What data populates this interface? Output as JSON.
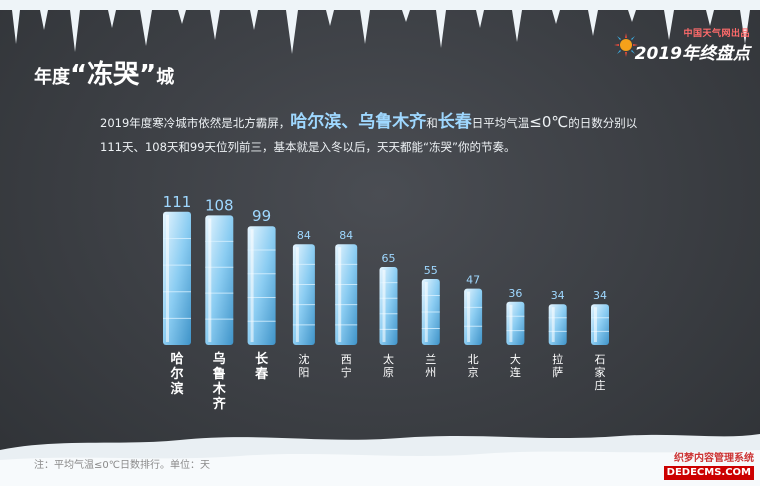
{
  "header": {
    "brand_small": "中国天气网出品",
    "brand_title": "2019年终盘点",
    "title_pre": "年度",
    "title_em": "“冻哭”",
    "title_post": "城"
  },
  "intro": {
    "t1": "2019年度寒冷城市依然是北方霸屏，",
    "c1": "哈尔滨",
    "s1": "、",
    "c2": "乌鲁木齐",
    "t2": "和",
    "c3": "长春",
    "t3": "日平均气温",
    "sym": "≤0℃",
    "t4": "的日数分别以",
    "line2": "111天、108天和99天位列前三，基本就是入冬以后，天天都能“冻哭”你的节奏。"
  },
  "chart_data": {
    "type": "bar",
    "categories": [
      "哈尔滨",
      "乌鲁木齐",
      "长春",
      "沈阳",
      "西宁",
      "太原",
      "兰州",
      "北京",
      "大连",
      "拉萨",
      "石家庄"
    ],
    "values": [
      111,
      108,
      99,
      84,
      84,
      65,
      55,
      47,
      36,
      34,
      34
    ],
    "unit": "天"
  },
  "footer": {
    "note": "注：平均气温≤0℃日数排行。单位：天",
    "watermark_1": "织梦内容管理系统",
    "watermark_2": "DEDECMS.COM"
  },
  "colors": {
    "ice": "#9fd8ff",
    "bg": "#3b3e43"
  }
}
